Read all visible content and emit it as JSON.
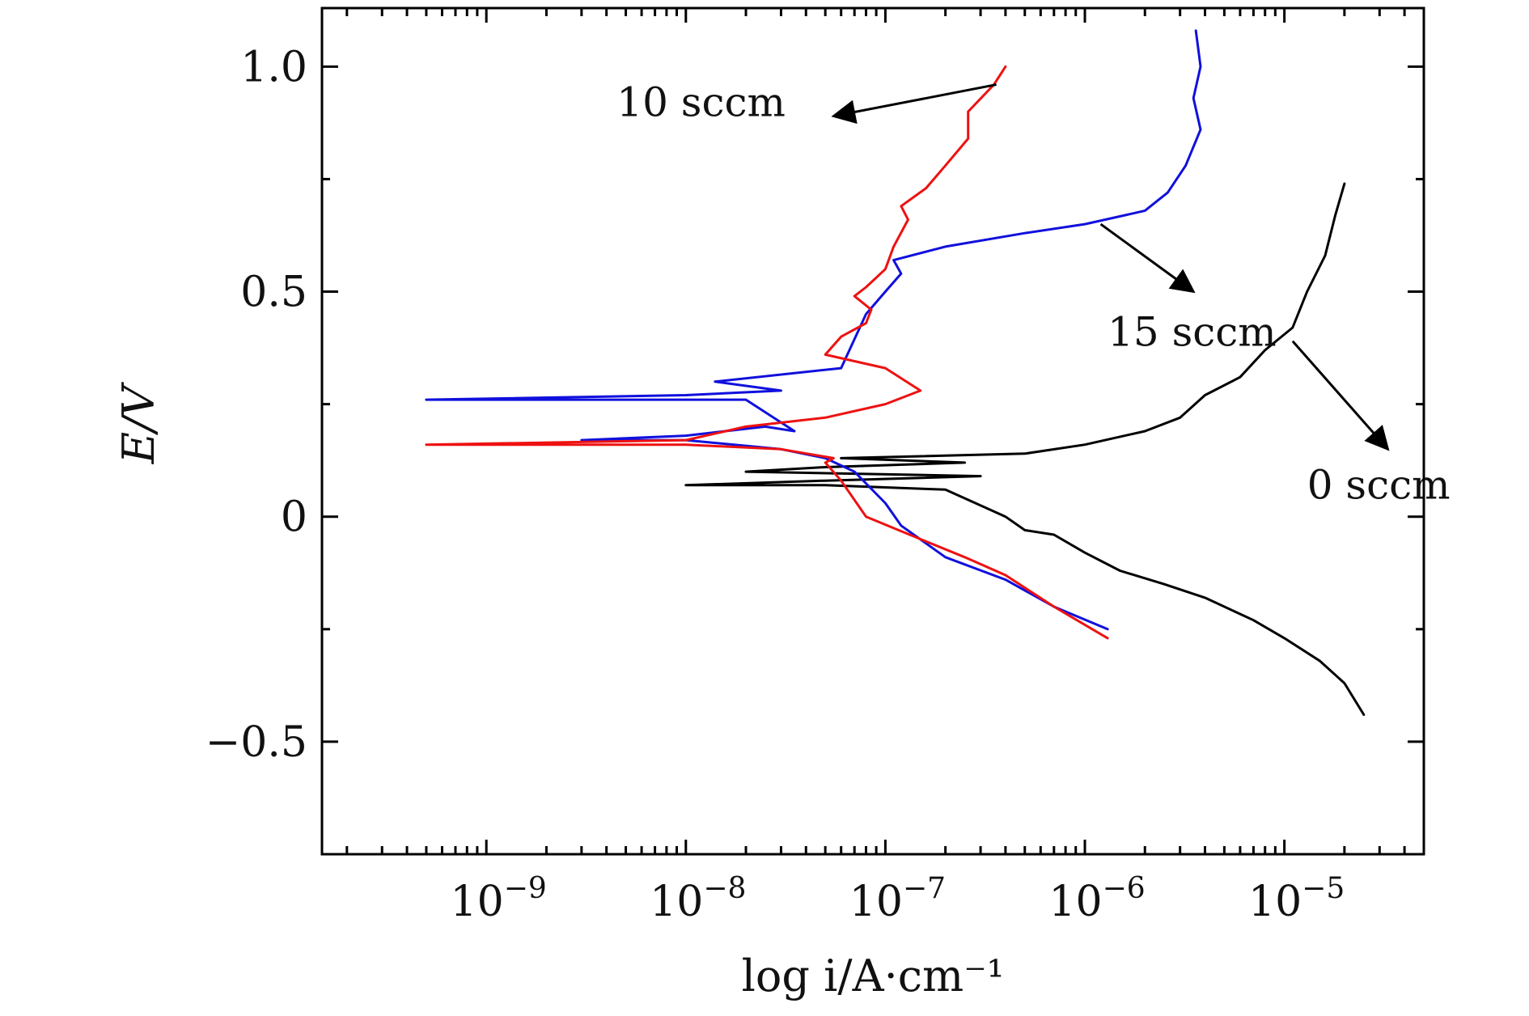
{
  "chart_data": {
    "type": "line",
    "title": "",
    "xlabel": "log i/A·cm⁻¹",
    "ylabel": "E/V",
    "x_scale": "log",
    "xlim": [
      1.5e-10,
      5e-05
    ],
    "ylim": [
      -0.75,
      1.13
    ],
    "x_major_ticks": [
      {
        "value": 1e-09,
        "base": "10",
        "exp": "−9"
      },
      {
        "value": 1e-08,
        "base": "10",
        "exp": "−8"
      },
      {
        "value": 1e-07,
        "base": "10",
        "exp": "−7"
      },
      {
        "value": 1e-06,
        "base": "10",
        "exp": "−6"
      },
      {
        "value": 1e-05,
        "base": "10",
        "exp": "−5"
      }
    ],
    "y_major_ticks": [
      {
        "value": 1.0,
        "label": "1.0"
      },
      {
        "value": 0.5,
        "label": "0.5"
      },
      {
        "value": 0,
        "label": "0"
      },
      {
        "value": -0.5,
        "label": "−0.5"
      }
    ],
    "y_minor_ticks": [
      0.75,
      0.25,
      -0.25
    ],
    "grid": false,
    "legend": "none",
    "series": [
      {
        "name": "0 sccm",
        "color": "#000000",
        "x": [
          2.5e-05,
          2e-05,
          1.5e-05,
          1e-05,
          7e-06,
          4e-06,
          2.5e-06,
          1.5e-06,
          1e-06,
          7e-07,
          5e-07,
          4e-07,
          2e-07,
          5e-08,
          1e-08,
          5e-08,
          3e-07,
          2e-08,
          5e-08,
          2.5e-07,
          6e-08,
          5e-07,
          1e-06,
          2e-06,
          3e-06,
          4e-06,
          6e-06,
          8e-06,
          1.1e-05,
          1.3e-05,
          1.6e-05,
          1.8e-05,
          2e-05
        ],
        "y": [
          -0.44,
          -0.37,
          -0.32,
          -0.27,
          -0.23,
          -0.18,
          -0.15,
          -0.12,
          -0.08,
          -0.04,
          -0.03,
          0.0,
          0.06,
          0.07,
          0.07,
          0.08,
          0.09,
          0.1,
          0.11,
          0.12,
          0.13,
          0.14,
          0.16,
          0.19,
          0.22,
          0.27,
          0.31,
          0.37,
          0.42,
          0.5,
          0.58,
          0.67,
          0.74
        ]
      },
      {
        "name": "15 sccm",
        "color": "#1010dd",
        "x": [
          1.3e-06,
          7e-07,
          4e-07,
          2e-07,
          1.2e-07,
          1e-07,
          7e-08,
          5e-08,
          3e-08,
          1e-08,
          3e-09,
          1e-08,
          2.5e-08,
          3.5e-08,
          2e-08,
          1e-08,
          5e-10,
          1e-08,
          3e-08,
          1.4e-08,
          6e-08,
          8e-08,
          1e-07,
          1.2e-07,
          1.1e-07,
          2e-07,
          5e-07,
          1e-06,
          1.6e-06,
          2e-06,
          2.6e-06,
          3.2e-06,
          3.8e-06,
          3.5e-06,
          3.8e-06,
          3.6e-06
        ],
        "y": [
          -0.25,
          -0.2,
          -0.14,
          -0.09,
          -0.02,
          0.03,
          0.1,
          0.13,
          0.15,
          0.17,
          0.17,
          0.18,
          0.2,
          0.19,
          0.26,
          0.26,
          0.26,
          0.27,
          0.28,
          0.3,
          0.33,
          0.45,
          0.5,
          0.54,
          0.57,
          0.6,
          0.63,
          0.65,
          0.67,
          0.68,
          0.72,
          0.78,
          0.86,
          0.93,
          1.0,
          1.08
        ]
      },
      {
        "name": "10 sccm",
        "color": "#ee1111",
        "x": [
          1.3e-06,
          7e-07,
          4e-07,
          2.5e-07,
          1.5e-07,
          8e-08,
          6e-08,
          5e-08,
          5.5e-08,
          3e-08,
          1e-08,
          5e-10,
          1e-08,
          2e-08,
          5e-08,
          1e-07,
          1.5e-07,
          1e-07,
          5e-08,
          6e-08,
          8e-08,
          8.5e-08,
          7e-08,
          8e-08,
          1e-07,
          1.1e-07,
          1.3e-07,
          1.2e-07,
          1.6e-07,
          2e-07,
          2.6e-07,
          2.6e-07,
          3.5e-07,
          4e-07
        ],
        "y": [
          -0.27,
          -0.2,
          -0.13,
          -0.09,
          -0.05,
          0.0,
          0.08,
          0.12,
          0.13,
          0.15,
          0.16,
          0.16,
          0.17,
          0.2,
          0.22,
          0.25,
          0.28,
          0.33,
          0.36,
          0.4,
          0.43,
          0.46,
          0.49,
          0.51,
          0.55,
          0.6,
          0.66,
          0.69,
          0.73,
          0.78,
          0.84,
          0.9,
          0.96,
          1.0
        ]
      }
    ],
    "annotations": [
      {
        "text": "10 sccm",
        "arrow_from": [
          3.6e-07,
          0.96
        ],
        "arrow_to": [
          5.5e-08,
          0.89
        ],
        "text_at": [
          4.5e-09,
          0.89
        ],
        "anchor": "start"
      },
      {
        "text": "15 sccm",
        "arrow_from": [
          1.2e-06,
          0.65
        ],
        "arrow_to": [
          3.5e-06,
          0.5
        ],
        "text_at": [
          1.3e-06,
          0.38
        ],
        "anchor": "start"
      },
      {
        "text": "0 sccm",
        "arrow_from": [
          1.1e-05,
          0.39
        ],
        "arrow_to": [
          3.3e-05,
          0.15
        ],
        "text_at": [
          1.3e-05,
          0.04
        ],
        "anchor": "start"
      }
    ]
  }
}
